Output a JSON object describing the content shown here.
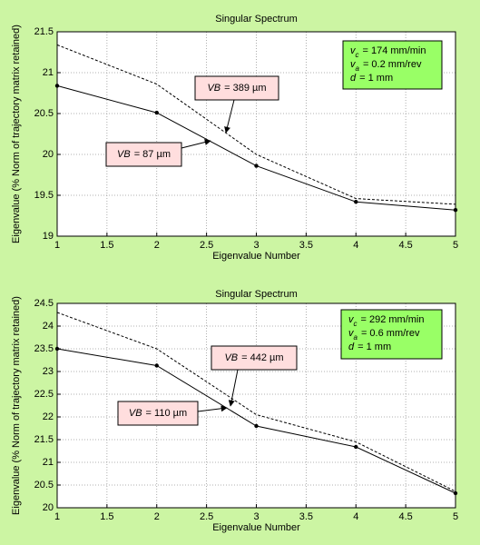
{
  "chart_data": [
    {
      "type": "line",
      "title": "Singular Spectrum",
      "xlabel": "Eigenvalue Number",
      "ylabel": "Eigenvalue (% Norm of trajectory matrix retained)",
      "x": [
        1,
        2,
        3,
        4,
        5
      ],
      "xlim": [
        1,
        5
      ],
      "xticks": [
        1,
        1.5,
        2,
        2.5,
        3,
        3.5,
        4,
        4.5,
        5
      ],
      "ylim": [
        19,
        21.5
      ],
      "yticks": [
        19,
        19.5,
        20,
        20.5,
        21,
        21.5
      ],
      "grid": true,
      "series": [
        {
          "color": "#000000",
          "linestyle": "solid",
          "marker": "o",
          "values": [
            20.84,
            20.51,
            19.86,
            19.42,
            19.32
          ]
        },
        {
          "color": "#000000",
          "linestyle": "dashed",
          "marker": "none",
          "values": [
            21.34,
            20.86,
            20.0,
            19.46,
            19.39
          ]
        }
      ],
      "annotations": [
        {
          "symbol": "VB",
          "text": "= 389 µm"
        },
        {
          "symbol": "VB",
          "text": "= 87 µm"
        }
      ],
      "parameters": [
        {
          "symbol": "v",
          "sub": "c",
          "text": "= 174 mm/min"
        },
        {
          "symbol": "v",
          "sub": "a",
          "text": "= 0.2 mm/rev"
        },
        {
          "symbol": "d",
          "text": "= 1 mm"
        }
      ]
    },
    {
      "type": "line",
      "title": "Singular Spectrum",
      "xlabel": "Eigenvalue Number",
      "ylabel": "Eigenvalue (% Norm of trajectory matrix retained)",
      "x": [
        1,
        2,
        3,
        4,
        5
      ],
      "xlim": [
        1,
        5
      ],
      "xticks": [
        1,
        1.5,
        2,
        2.5,
        3,
        3.5,
        4,
        4.5,
        5
      ],
      "ylim": [
        20,
        24.5
      ],
      "yticks": [
        20,
        20.5,
        21,
        21.5,
        22,
        22.5,
        23,
        23.5,
        24,
        24.5
      ],
      "grid": true,
      "series": [
        {
          "color": "#000000",
          "linestyle": "solid",
          "marker": "o",
          "values": [
            23.5,
            23.13,
            21.8,
            21.34,
            20.32
          ]
        },
        {
          "color": "#000000",
          "linestyle": "dashed",
          "marker": "none",
          "values": [
            24.3,
            23.5,
            22.05,
            21.45,
            20.36
          ]
        }
      ],
      "annotations": [
        {
          "symbol": "VB",
          "text": "= 442 µm"
        },
        {
          "symbol": "VB",
          "text": "= 110 µm"
        }
      ],
      "parameters": [
        {
          "symbol": "v",
          "sub": "c",
          "text": "= 292 mm/min"
        },
        {
          "symbol": "v",
          "sub": "a",
          "text": "= 0.6 mm/rev"
        },
        {
          "symbol": "d",
          "text": "= 1 mm"
        }
      ]
    }
  ]
}
